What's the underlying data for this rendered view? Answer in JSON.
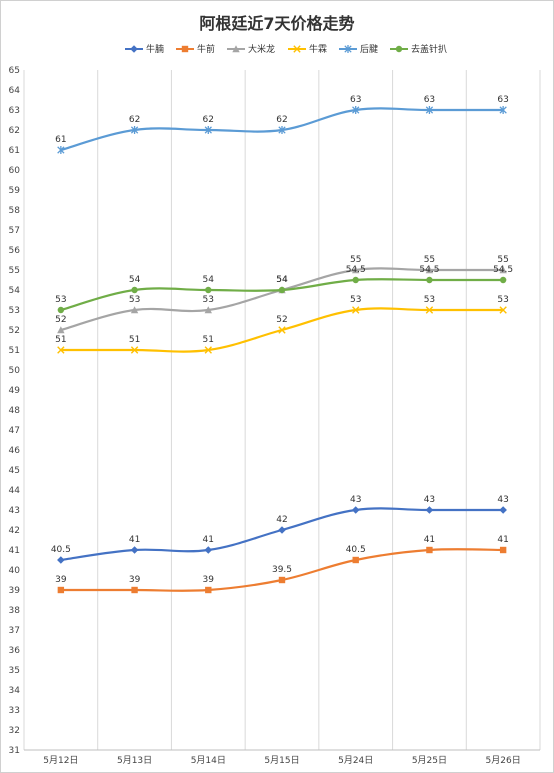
{
  "chart_data": {
    "type": "line",
    "title": "阿根廷近7天价格走势",
    "categories": [
      "5月12日",
      "5月13日",
      "5月14日",
      "5月15日",
      "5月24日",
      "5月25日",
      "5月26日"
    ],
    "ylim": [
      31,
      65
    ],
    "y_ticks": [
      31,
      32,
      33,
      34,
      35,
      36,
      37,
      38,
      39,
      40,
      41,
      42,
      43,
      44,
      45,
      46,
      47,
      48,
      49,
      50,
      51,
      52,
      53,
      54,
      55,
      56,
      57,
      58,
      59,
      60,
      61,
      62,
      63,
      64,
      65
    ],
    "grid": "vertical",
    "legend_position": "top",
    "series": [
      {
        "name": "牛腩",
        "color": "#4472c4",
        "marker": "diamond",
        "values": [
          40.5,
          41,
          41,
          42,
          43,
          43,
          43
        ],
        "labels": [
          "40.5",
          "41",
          "41",
          "42",
          "43",
          "43",
          "43"
        ]
      },
      {
        "name": "牛前",
        "color": "#ed7d31",
        "marker": "square",
        "values": [
          39,
          39,
          39,
          39.5,
          40.5,
          41,
          41
        ],
        "labels": [
          "39",
          "39",
          "39",
          "39.5",
          "40.5",
          "41",
          "41"
        ]
      },
      {
        "name": "大米龙",
        "color": "#a5a5a5",
        "marker": "triangle",
        "values": [
          52,
          53,
          53,
          54,
          55,
          55,
          55
        ],
        "labels": [
          "52",
          "53",
          "53",
          "54",
          "55",
          "55",
          "55"
        ]
      },
      {
        "name": "牛霖",
        "color": "#ffc000",
        "marker": "x",
        "values": [
          51,
          51,
          51,
          52,
          53,
          53,
          53
        ],
        "labels": [
          "51",
          "51",
          "51",
          "52",
          "53",
          "53",
          "53"
        ]
      },
      {
        "name": "后腱",
        "color": "#5b9bd5",
        "marker": "star",
        "values": [
          61,
          62,
          62,
          62,
          63,
          63,
          63
        ],
        "labels": [
          "61",
          "62",
          "62",
          "62",
          "63",
          "63",
          "63"
        ]
      },
      {
        "name": "去盖针扒",
        "color": "#70ad47",
        "marker": "circle",
        "values": [
          53,
          54,
          54,
          54,
          54.5,
          54.5,
          54.5
        ],
        "labels": [
          "53",
          "54",
          "54",
          "54",
          "54.5",
          "54.5",
          "54.5"
        ]
      }
    ]
  }
}
